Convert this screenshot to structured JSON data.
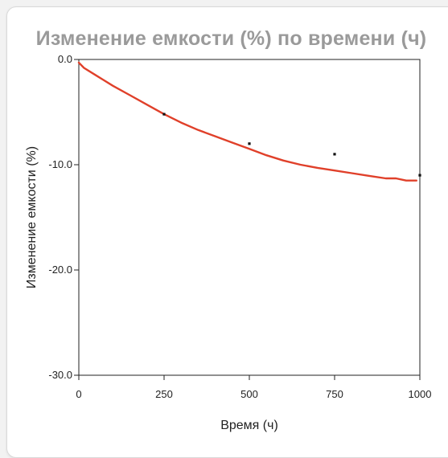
{
  "chart_data": {
    "type": "line",
    "title": "Изменение емкости (%) по времени (ч)",
    "xlabel": "Время (ч)",
    "ylabel": "Изменение емкости (%)",
    "xlim": [
      0,
      1000
    ],
    "ylim": [
      -30,
      0
    ],
    "x_ticks": [
      0,
      250,
      500,
      750,
      1000
    ],
    "x_tick_labels": [
      "0",
      "250",
      "500",
      "750",
      "1000"
    ],
    "y_ticks": [
      0,
      -10,
      -20,
      -30
    ],
    "y_tick_labels": [
      "0.0",
      "-10.0",
      "-20.0",
      "-30.0"
    ],
    "grid": false,
    "series": [
      {
        "kind": "line",
        "color": "#e0402a",
        "x": [
          0,
          15,
          50,
          100,
          150,
          200,
          250,
          300,
          350,
          400,
          450,
          500,
          550,
          600,
          650,
          700,
          750,
          800,
          850,
          900,
          930,
          960,
          990
        ],
        "y": [
          -0.3,
          -0.8,
          -1.5,
          -2.5,
          -3.4,
          -4.3,
          -5.2,
          -6.0,
          -6.7,
          -7.3,
          -7.9,
          -8.5,
          -9.1,
          -9.6,
          -10.0,
          -10.3,
          -10.55,
          -10.8,
          -11.05,
          -11.3,
          -11.3,
          -11.5,
          -11.5
        ]
      },
      {
        "kind": "scatter",
        "color": "#111111",
        "x": [
          250,
          500,
          750,
          1000
        ],
        "y": [
          -5.2,
          -8.0,
          -9.0,
          -11.0
        ]
      }
    ]
  }
}
